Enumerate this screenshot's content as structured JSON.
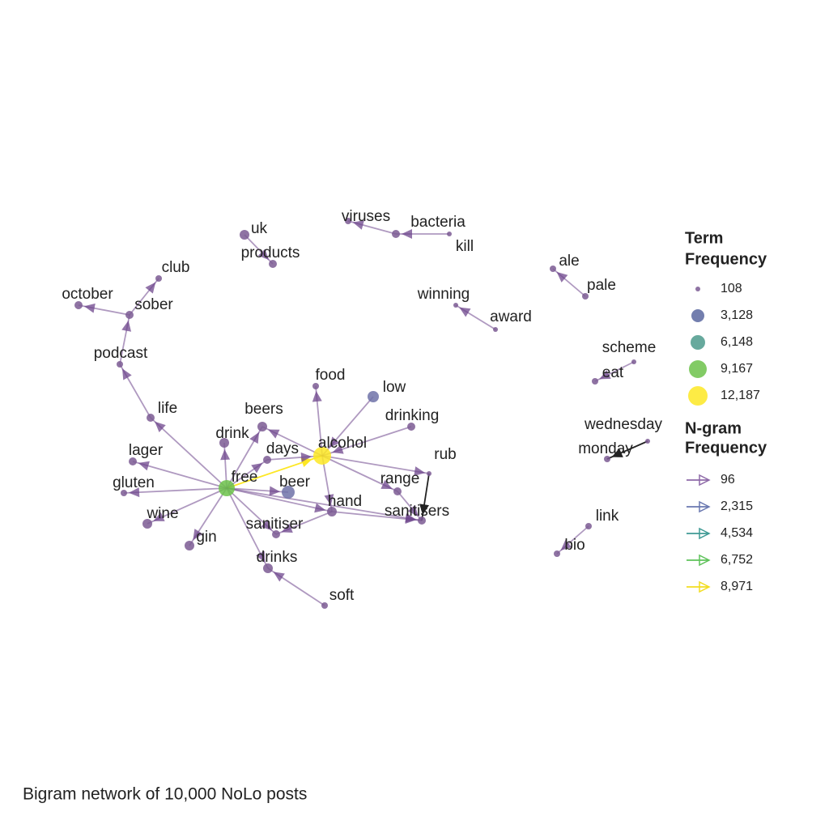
{
  "caption": "Bigram network of 10,000 NoLo posts",
  "nodes": [
    {
      "label": "alcohol"
    },
    {
      "label": "free"
    },
    {
      "label": "beer"
    },
    {
      "label": "days"
    },
    {
      "label": "drink"
    },
    {
      "label": "beers"
    },
    {
      "label": "food"
    },
    {
      "label": "low"
    },
    {
      "label": "drinking"
    },
    {
      "label": "rub"
    },
    {
      "label": "range"
    },
    {
      "label": "sanitisers"
    },
    {
      "label": "hand"
    },
    {
      "label": "sanitiser"
    },
    {
      "label": "drinks"
    },
    {
      "label": "soft"
    },
    {
      "label": "gin"
    },
    {
      "label": "wine"
    },
    {
      "label": "gluten"
    },
    {
      "label": "lager"
    },
    {
      "label": "life"
    },
    {
      "label": "podcast"
    },
    {
      "label": "sober"
    },
    {
      "label": "october"
    },
    {
      "label": "club"
    },
    {
      "label": "uk"
    },
    {
      "label": "products"
    },
    {
      "label": "viruses"
    },
    {
      "label": "bacteria"
    },
    {
      "label": "kill"
    },
    {
      "label": "winning"
    },
    {
      "label": "award"
    },
    {
      "label": "ale"
    },
    {
      "label": "pale"
    },
    {
      "label": "scheme"
    },
    {
      "label": "eat"
    },
    {
      "label": "wednesday"
    },
    {
      "label": "monday"
    },
    {
      "label": "link"
    },
    {
      "label": "bio"
    }
  ],
  "legend": {
    "term_frequency": {
      "title": [
        "Term",
        "Frequency"
      ],
      "items": [
        "108",
        "3,128",
        "6,148",
        "9,167",
        "12,187"
      ]
    },
    "ngram_frequency": {
      "title": [
        "N-gram",
        "Frequency"
      ],
      "items": [
        "96",
        "2,315",
        "4,534",
        "6,752",
        "8,971"
      ]
    }
  }
}
